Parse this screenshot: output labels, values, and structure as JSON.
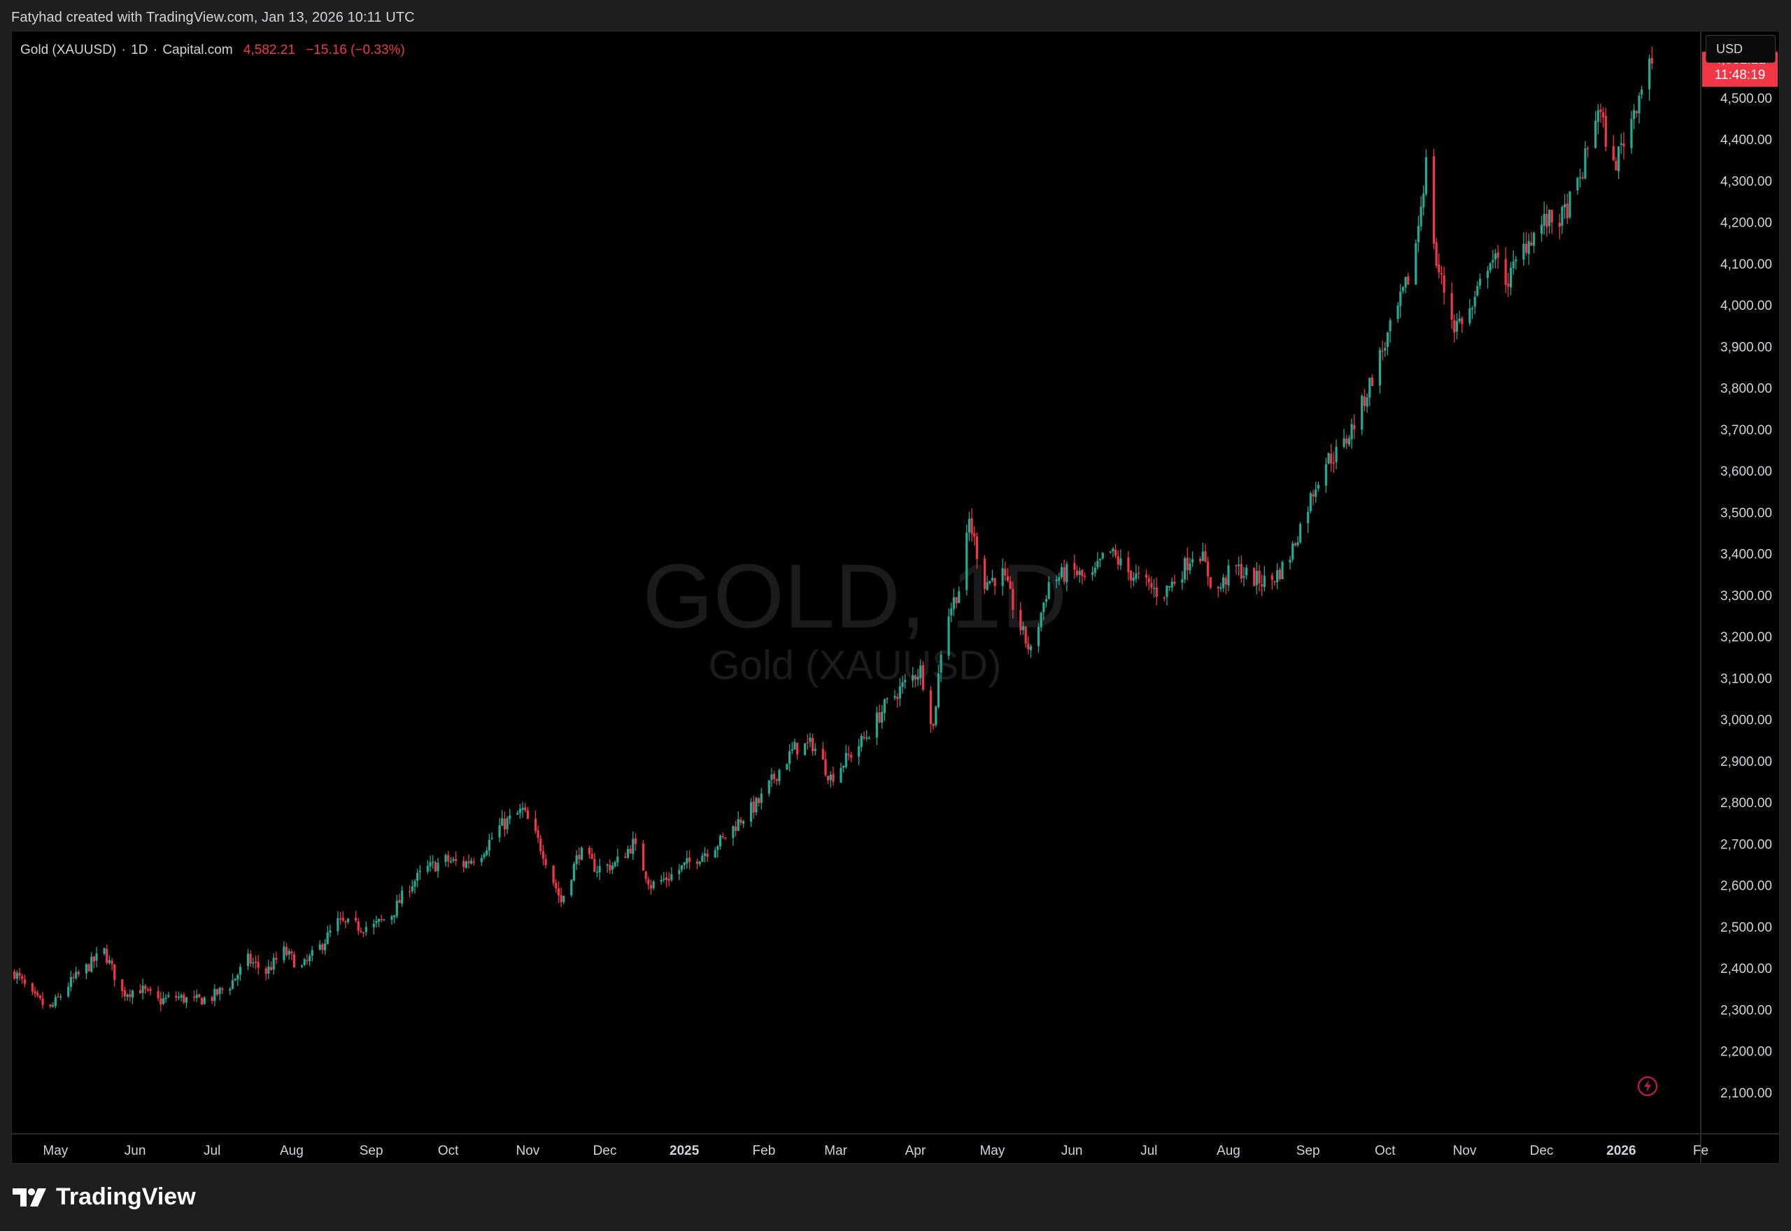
{
  "header": {
    "attribution": "Fatyhad created with TradingView.com, Jan 13, 2026 10:11 UTC"
  },
  "legend": {
    "symbol": "Gold (XAUUSD)",
    "interval": "1D",
    "source": "Capital.com",
    "price": "4,582.21",
    "change": "−15.16 (−0.33%)"
  },
  "currency": "USD",
  "watermark": {
    "title": "GOLD, 1D",
    "subtitle": "Gold (XAUUSD)"
  },
  "price_badge": {
    "price": "4,582.21",
    "countdown": "11:48:19"
  },
  "brand": {
    "name": "TradingView"
  },
  "icons": {
    "brand_logo": "tradingview-logo-icon",
    "lightning": "lightning-icon"
  },
  "colors": {
    "up": "#22ab94",
    "down": "#f23645",
    "background": "#000000",
    "badge": "#f23645"
  },
  "chart_data": {
    "type": "candlestick",
    "title": "",
    "ylim": [
      2000,
      4660
    ],
    "yticks": [
      {
        "value": 2100,
        "label": "2,100.00"
      },
      {
        "value": 2200,
        "label": "2,200.00"
      },
      {
        "value": 2300,
        "label": "2,300.00"
      },
      {
        "value": 2400,
        "label": "2,400.00"
      },
      {
        "value": 2500,
        "label": "2,500.00"
      },
      {
        "value": 2600,
        "label": "2,600.00"
      },
      {
        "value": 2700,
        "label": "2,700.00"
      },
      {
        "value": 2800,
        "label": "2,800.00"
      },
      {
        "value": 2900,
        "label": "2,900.00"
      },
      {
        "value": 3000,
        "label": "3,000.00"
      },
      {
        "value": 3100,
        "label": "3,100.00"
      },
      {
        "value": 3200,
        "label": "3,200.00"
      },
      {
        "value": 3300,
        "label": "3,300.00"
      },
      {
        "value": 3400,
        "label": "3,400.00"
      },
      {
        "value": 3500,
        "label": "3,500.00"
      },
      {
        "value": 3600,
        "label": "3,600.00"
      },
      {
        "value": 3700,
        "label": "3,700.00"
      },
      {
        "value": 3800,
        "label": "3,800.00"
      },
      {
        "value": 3900,
        "label": "3,900.00"
      },
      {
        "value": 4000,
        "label": "4,000.00"
      },
      {
        "value": 4100,
        "label": "4,100.00"
      },
      {
        "value": 4200,
        "label": "4,200.00"
      },
      {
        "value": 4300,
        "label": "4,300.00"
      },
      {
        "value": 4400,
        "label": "4,400.00"
      },
      {
        "value": 4500,
        "label": "4,500.00"
      }
    ],
    "xticks": [
      {
        "date": "2024-05-01",
        "label": "May",
        "bold": false
      },
      {
        "date": "2024-06-01",
        "label": "Jun",
        "bold": false
      },
      {
        "date": "2024-07-01",
        "label": "Jul",
        "bold": false
      },
      {
        "date": "2024-08-01",
        "label": "Aug",
        "bold": false
      },
      {
        "date": "2024-09-01",
        "label": "Sep",
        "bold": false
      },
      {
        "date": "2024-10-01",
        "label": "Oct",
        "bold": false
      },
      {
        "date": "2024-11-01",
        "label": "Nov",
        "bold": false
      },
      {
        "date": "2024-12-01",
        "label": "Dec",
        "bold": false
      },
      {
        "date": "2025-01-01",
        "label": "2025",
        "bold": true
      },
      {
        "date": "2025-02-01",
        "label": "Feb",
        "bold": false
      },
      {
        "date": "2025-03-01",
        "label": "Mar",
        "bold": false
      },
      {
        "date": "2025-04-01",
        "label": "Apr",
        "bold": false
      },
      {
        "date": "2025-05-01",
        "label": "May",
        "bold": false
      },
      {
        "date": "2025-06-01",
        "label": "Jun",
        "bold": false
      },
      {
        "date": "2025-07-01",
        "label": "Jul",
        "bold": false
      },
      {
        "date": "2025-08-01",
        "label": "Aug",
        "bold": false
      },
      {
        "date": "2025-09-01",
        "label": "Sep",
        "bold": false
      },
      {
        "date": "2025-10-01",
        "label": "Oct",
        "bold": false
      },
      {
        "date": "2025-11-01",
        "label": "Nov",
        "bold": false
      },
      {
        "date": "2025-12-01",
        "label": "Dec",
        "bold": false
      },
      {
        "date": "2026-01-01",
        "label": "2026",
        "bold": true
      },
      {
        "date": "2026-02-01",
        "label": "Fe",
        "bold": false
      }
    ],
    "x_range": [
      "2024-04-14",
      "2026-02-01"
    ],
    "last_price": 4582.21,
    "grid": false,
    "series": [
      {
        "close_path": [
          [
            "2024-04-15",
            2390
          ],
          [
            "2024-04-22",
            2330
          ],
          [
            "2024-04-29",
            2300
          ],
          [
            "2024-05-06",
            2360
          ],
          [
            "2024-05-13",
            2400
          ],
          [
            "2024-05-20",
            2440
          ],
          [
            "2024-05-27",
            2340
          ],
          [
            "2024-06-03",
            2350
          ],
          [
            "2024-06-10",
            2320
          ],
          [
            "2024-06-17",
            2330
          ],
          [
            "2024-06-24",
            2320
          ],
          [
            "2024-07-01",
            2330
          ],
          [
            "2024-07-08",
            2360
          ],
          [
            "2024-07-15",
            2420
          ],
          [
            "2024-07-22",
            2390
          ],
          [
            "2024-07-29",
            2440
          ],
          [
            "2024-08-05",
            2400
          ],
          [
            "2024-08-12",
            2450
          ],
          [
            "2024-08-19",
            2510
          ],
          [
            "2024-08-26",
            2500
          ],
          [
            "2024-09-02",
            2500
          ],
          [
            "2024-09-09",
            2530
          ],
          [
            "2024-09-16",
            2600
          ],
          [
            "2024-09-23",
            2640
          ],
          [
            "2024-09-30",
            2660
          ],
          [
            "2024-10-07",
            2650
          ],
          [
            "2024-10-14",
            2680
          ],
          [
            "2024-10-21",
            2740
          ],
          [
            "2024-10-30",
            2780
          ],
          [
            "2024-11-07",
            2680
          ],
          [
            "2024-11-14",
            2560
          ],
          [
            "2024-11-21",
            2680
          ],
          [
            "2024-11-28",
            2640
          ],
          [
            "2024-12-05",
            2650
          ],
          [
            "2024-12-12",
            2700
          ],
          [
            "2024-12-19",
            2600
          ],
          [
            "2024-12-26",
            2620
          ],
          [
            "2025-01-02",
            2650
          ],
          [
            "2025-01-09",
            2680
          ],
          [
            "2025-01-16",
            2710
          ],
          [
            "2025-01-23",
            2760
          ],
          [
            "2025-01-30",
            2800
          ],
          [
            "2025-02-06",
            2870
          ],
          [
            "2025-02-13",
            2930
          ],
          [
            "2025-02-20",
            2940
          ],
          [
            "2025-02-27",
            2860
          ],
          [
            "2025-03-06",
            2910
          ],
          [
            "2025-03-13",
            2960
          ],
          [
            "2025-03-20",
            3030
          ],
          [
            "2025-03-27",
            3080
          ],
          [
            "2025-04-03",
            3120
          ],
          [
            "2025-04-08",
            2980
          ],
          [
            "2025-04-12",
            3230
          ],
          [
            "2025-04-19",
            3330
          ],
          [
            "2025-04-22",
            3480
          ],
          [
            "2025-04-28",
            3330
          ],
          [
            "2025-05-05",
            3350
          ],
          [
            "2025-05-12",
            3220
          ],
          [
            "2025-05-16",
            3160
          ],
          [
            "2025-05-23",
            3330
          ],
          [
            "2025-06-01",
            3360
          ],
          [
            "2025-06-08",
            3330
          ],
          [
            "2025-06-15",
            3410
          ],
          [
            "2025-06-22",
            3360
          ],
          [
            "2025-06-29",
            3330
          ],
          [
            "2025-07-06",
            3300
          ],
          [
            "2025-07-13",
            3350
          ],
          [
            "2025-07-20",
            3420
          ],
          [
            "2025-07-27",
            3300
          ],
          [
            "2025-08-03",
            3370
          ],
          [
            "2025-08-10",
            3340
          ],
          [
            "2025-08-17",
            3330
          ],
          [
            "2025-08-24",
            3380
          ],
          [
            "2025-08-31",
            3500
          ],
          [
            "2025-09-07",
            3620
          ],
          [
            "2025-09-14",
            3650
          ],
          [
            "2025-09-21",
            3740
          ],
          [
            "2025-09-28",
            3860
          ],
          [
            "2025-10-05",
            3970
          ],
          [
            "2025-10-12",
            4100
          ],
          [
            "2025-10-17",
            4340
          ],
          [
            "2025-10-21",
            4100
          ],
          [
            "2025-10-28",
            3950
          ],
          [
            "2025-11-04",
            3990
          ],
          [
            "2025-11-11",
            4120
          ],
          [
            "2025-11-18",
            4060
          ],
          [
            "2025-11-25",
            4150
          ],
          [
            "2025-12-02",
            4200
          ],
          [
            "2025-12-09",
            4210
          ],
          [
            "2025-12-16",
            4300
          ],
          [
            "2025-12-23",
            4480
          ],
          [
            "2025-12-29",
            4330
          ],
          [
            "2026-01-05",
            4450
          ],
          [
            "2026-01-12",
            4597
          ],
          [
            "2026-01-13",
            4582
          ]
        ]
      }
    ]
  }
}
